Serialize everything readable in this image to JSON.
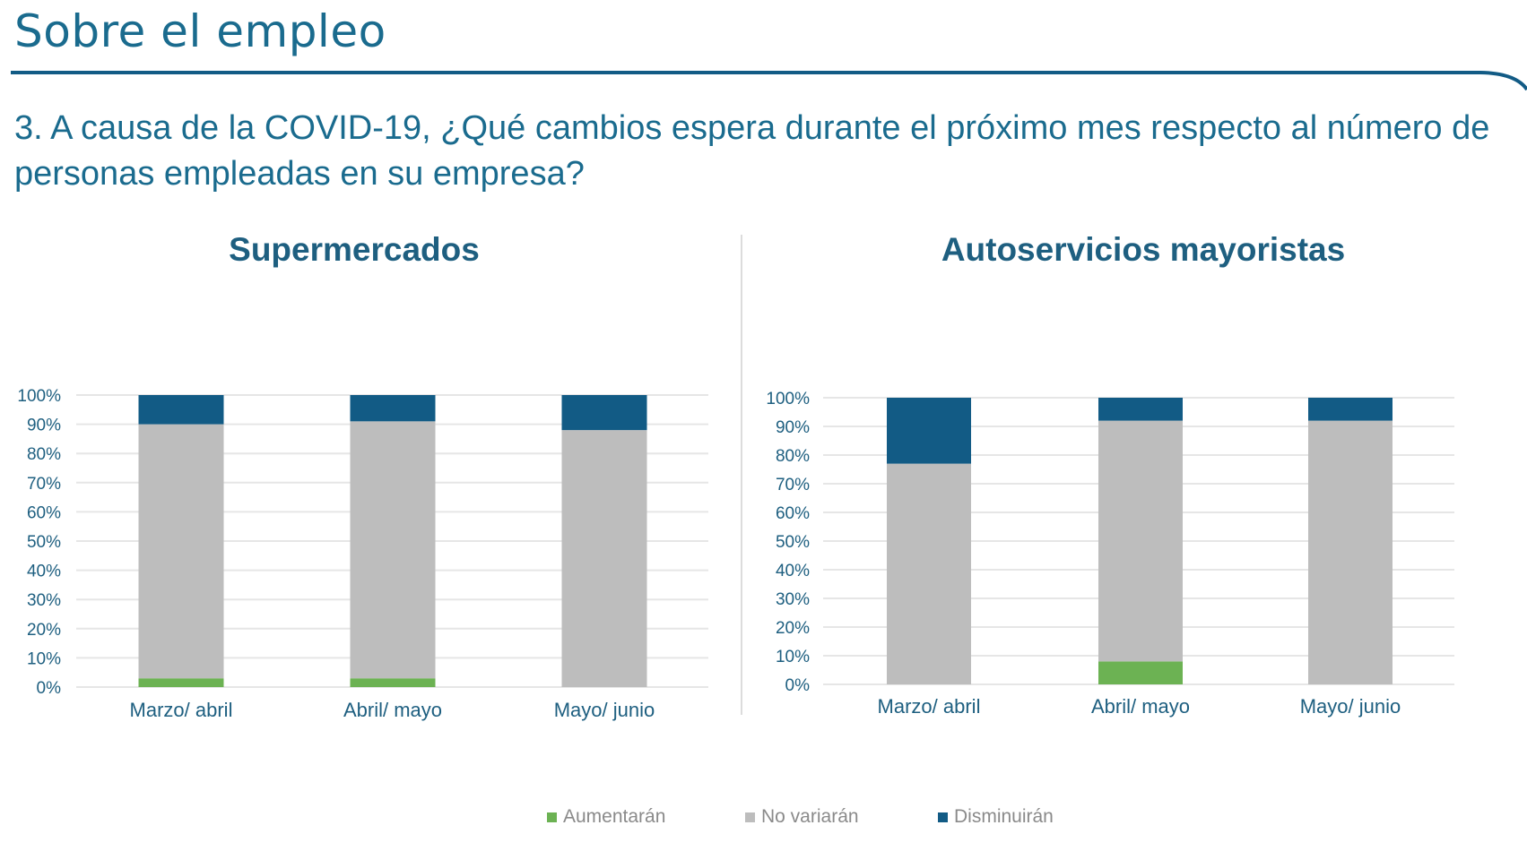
{
  "header": {
    "title": "Sobre el empleo",
    "question": "3. A causa de la COVID-19, ¿Qué cambios espera durante el próximo mes respecto al número de personas empleadas en su empresa?"
  },
  "colors": {
    "aumentaran": "#6cb253",
    "no_variaran": "#bdbdbd",
    "disminuiran": "#125b85",
    "grid": "#e6e6e6",
    "text": "#1e5f80",
    "accent_rule": "#125b85"
  },
  "chart_data": [
    {
      "type": "bar",
      "stacked": true,
      "title": "Supermercados",
      "categories": [
        "Marzo/ abril",
        "Abril/ mayo",
        "Mayo/ junio"
      ],
      "series": [
        {
          "name": "Aumentarán",
          "values": [
            3,
            3,
            0
          ]
        },
        {
          "name": "No variarán",
          "values": [
            87,
            88,
            88
          ]
        },
        {
          "name": "Disminuirán",
          "values": [
            10,
            9,
            12
          ]
        }
      ],
      "yticks": [
        "0%",
        "10%",
        "20%",
        "30%",
        "40%",
        "50%",
        "60%",
        "70%",
        "80%",
        "90%",
        "100%"
      ],
      "ylim": [
        0,
        100
      ],
      "grid": true
    },
    {
      "type": "bar",
      "stacked": true,
      "title": "Autoservicios mayoristas",
      "categories": [
        "Marzo/ abril",
        "Abril/ mayo",
        "Mayo/ junio"
      ],
      "series": [
        {
          "name": "Aumentarán",
          "values": [
            0,
            8,
            0
          ]
        },
        {
          "name": "No variarán",
          "values": [
            77,
            84,
            92
          ]
        },
        {
          "name": "Disminuirán",
          "values": [
            23,
            8,
            8
          ]
        }
      ],
      "yticks": [
        "0%",
        "10%",
        "20%",
        "30%",
        "40%",
        "50%",
        "60%",
        "70%",
        "80%",
        "90%",
        "100%"
      ],
      "ylim": [
        0,
        100
      ],
      "grid": true
    }
  ],
  "legend": {
    "placement": "bottom-center",
    "items": [
      {
        "label": "Aumentarán",
        "color": "#6cb253"
      },
      {
        "label": "No variarán",
        "color": "#bdbdbd"
      },
      {
        "label": "Disminuirán",
        "color": "#125b85"
      }
    ]
  }
}
